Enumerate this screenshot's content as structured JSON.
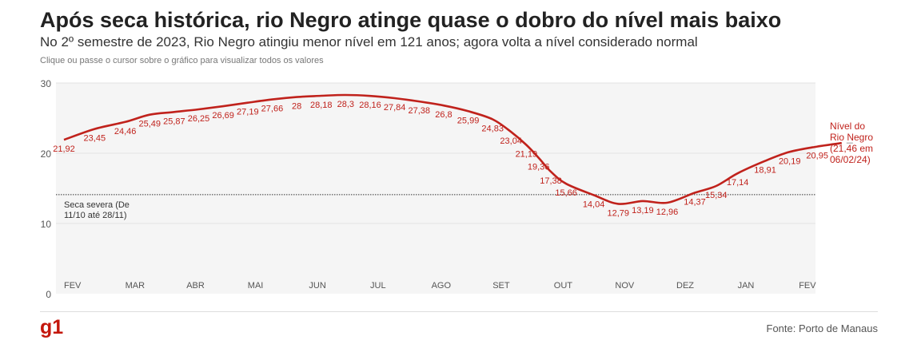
{
  "header": {
    "title": "Após seca histórica, rio Negro atinge quase o dobro do nível mais baixo",
    "subtitle": "No 2º semestre de 2023, Rio Negro atingiu menor nível em 121 anos; agora volta a nível considerado normal",
    "hint": "Clique ou passe o cursor sobre o gráfico para visualizar todos os valores"
  },
  "footer": {
    "logo": "g1",
    "source": "Fonte: Porto de Manaus"
  },
  "colors": {
    "line": "#c0221c",
    "label": "#c0221c",
    "plot_bg": "#f5f5f5",
    "grid": "#e2e2e2"
  },
  "chart_data": {
    "type": "line",
    "title": "Após seca histórica, rio Negro atinge quase o dobro do nível mais baixo",
    "ylim": [
      0,
      30
    ],
    "yticks": [
      "0",
      "10",
      "20",
      "30"
    ],
    "grid": true,
    "months": [
      "FEV",
      "MAR",
      "ABR",
      "MAI",
      "JUN",
      "JUL",
      "AGO",
      "SET",
      "OUT",
      "NOV",
      "DEZ",
      "JAN",
      "FEV"
    ],
    "series": [
      {
        "points": [
          {
            "x": 0.0,
            "y": 21.92,
            "label": "21,92"
          },
          {
            "x": 0.5,
            "y": 23.45,
            "label": "23,45"
          },
          {
            "x": 1.0,
            "y": 24.46,
            "label": "24,46"
          },
          {
            "x": 1.4,
            "y": 25.49,
            "label": "25,49"
          },
          {
            "x": 1.8,
            "y": 25.87,
            "label": "25,87"
          },
          {
            "x": 2.2,
            "y": 26.25,
            "label": "26,25"
          },
          {
            "x": 2.6,
            "y": 26.69,
            "label": "26,69"
          },
          {
            "x": 3.0,
            "y": 27.19,
            "label": "27,19"
          },
          {
            "x": 3.4,
            "y": 27.66,
            "label": "27,66"
          },
          {
            "x": 3.8,
            "y": 28.0,
            "label": "28"
          },
          {
            "x": 4.2,
            "y": 28.18,
            "label": "28,18"
          },
          {
            "x": 4.6,
            "y": 28.3,
            "label": "28,3"
          },
          {
            "x": 5.0,
            "y": 28.16,
            "label": "28,16"
          },
          {
            "x": 5.4,
            "y": 27.84,
            "label": "27,84"
          },
          {
            "x": 5.8,
            "y": 27.38,
            "label": "27,38"
          },
          {
            "x": 6.2,
            "y": 26.8,
            "label": "26,8"
          },
          {
            "x": 6.6,
            "y": 25.99,
            "label": "25,99"
          },
          {
            "x": 7.0,
            "y": 24.83,
            "label": "24,83"
          },
          {
            "x": 7.3,
            "y": 23.04,
            "label": "23,04"
          },
          {
            "x": 7.55,
            "y": 21.19,
            "label": "21,19"
          },
          {
            "x": 7.75,
            "y": 19.36,
            "label": "19,36"
          },
          {
            "x": 7.95,
            "y": 17.38,
            "label": "17,38"
          },
          {
            "x": 8.2,
            "y": 15.66,
            "label": "15,66"
          },
          {
            "x": 8.65,
            "y": 14.04,
            "label": "14,04"
          },
          {
            "x": 9.05,
            "y": 12.79,
            "label": "12,79"
          },
          {
            "x": 9.45,
            "y": 13.19,
            "label": "13,19"
          },
          {
            "x": 9.85,
            "y": 12.96,
            "label": "12,96"
          },
          {
            "x": 10.3,
            "y": 14.37,
            "label": "14,37"
          },
          {
            "x": 10.65,
            "y": 15.34,
            "label": "15,34"
          },
          {
            "x": 11.0,
            "y": 17.14,
            "label": "17,14"
          },
          {
            "x": 11.45,
            "y": 18.91,
            "label": "18,91"
          },
          {
            "x": 11.85,
            "y": 20.19,
            "label": "20,19"
          },
          {
            "x": 12.3,
            "y": 20.95,
            "label": "20,95"
          },
          {
            "x": 12.7,
            "y": 21.46,
            "label": ""
          }
        ]
      }
    ],
    "annotations": {
      "threshold": {
        "y": 14.1,
        "label_lines": [
          "Seca severa (De",
          "11/10 até 28/11)"
        ]
      },
      "end_label": [
        "Nível do",
        "Rio Negro",
        "(21,46 em",
        "06/02/24)"
      ]
    }
  }
}
